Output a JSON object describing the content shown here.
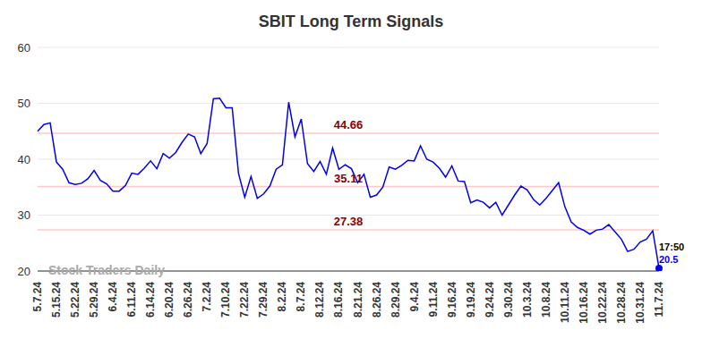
{
  "chart_data": {
    "type": "line",
    "title": "SBIT Long Term Signals",
    "watermark": "Stock Traders Daily",
    "color": "#0000ee",
    "categories": [
      "5.7.24",
      null,
      null,
      "5.15.24",
      null,
      null,
      "5.22.24",
      null,
      null,
      "5.29.24",
      null,
      null,
      "6.4.24",
      null,
      null,
      "6.11.24",
      null,
      null,
      "6.14.24",
      null,
      null,
      "6.20.24",
      null,
      null,
      "6.26.24",
      null,
      null,
      "7.2.24",
      null,
      null,
      "7.10.24",
      null,
      null,
      "7.22.24",
      null,
      null,
      "7.29.24",
      null,
      null,
      "8.2.24",
      null,
      null,
      "8.7.24",
      null,
      null,
      "8.12.24",
      null,
      null,
      "8.16.24",
      null,
      null,
      "8.21.24",
      null,
      null,
      "8.26.24",
      null,
      null,
      "8.29.24",
      null,
      null,
      "9.4.24",
      null,
      null,
      "9.11.24",
      null,
      null,
      "9.16.24",
      null,
      null,
      "9.19.24",
      null,
      null,
      "9.24.24",
      null,
      null,
      "9.30.24",
      null,
      null,
      "10.3.24",
      null,
      null,
      "10.8.24",
      null,
      null,
      "10.11.24",
      null,
      null,
      "10.16.24",
      null,
      null,
      "10.22.24",
      null,
      null,
      "10.28.24",
      null,
      null,
      "10.31.24",
      null,
      null,
      "11.7.24"
    ],
    "values": [
      45,
      46.2,
      46.5,
      39.5,
      38.2,
      35.8,
      35.5,
      35.7,
      36.5,
      38,
      36.2,
      35.6,
      34.3,
      34.3,
      35.3,
      37.5,
      37.3,
      38.4,
      39.7,
      38.3,
      41,
      40.2,
      41.2,
      43,
      44.5,
      44,
      41,
      42.8,
      50.8,
      50.9,
      49.2,
      49.2,
      37.5,
      33.2,
      36.9,
      33,
      33.8,
      35.2,
      38.2,
      39,
      50.2,
      44,
      47.2,
      39.2,
      37.8,
      39.6,
      37.3,
      42,
      38.2,
      39,
      38.3,
      35.8,
      37.3,
      33.2,
      33.6,
      35,
      38.6,
      38.2,
      38.9,
      39.8,
      39.7,
      42.4,
      40,
      39.5,
      38.4,
      36.8,
      38.8,
      36.1,
      36,
      32.2,
      32.7,
      32.3,
      31.3,
      32.3,
      30,
      31.8,
      33.6,
      35.2,
      34.5,
      32.8,
      31.8,
      33,
      34.4,
      35.8,
      31.5,
      28.8,
      27.8,
      27.3,
      26.6,
      27.3,
      27.5,
      28.3,
      27,
      25.7,
      23.5,
      23.9,
      25.2,
      25.7,
      27.2,
      20.5
    ],
    "ylim": [
      20,
      60
    ],
    "yticks": [
      20,
      30,
      40,
      50,
      60
    ],
    "grid": true,
    "annotations": [
      {
        "value": 44.66,
        "label": "44.66"
      },
      {
        "value": 35.11,
        "label": "35.11"
      },
      {
        "value": 27.38,
        "label": "27.38"
      }
    ],
    "last_point": {
      "time": "17:50",
      "value": 20.5
    }
  }
}
